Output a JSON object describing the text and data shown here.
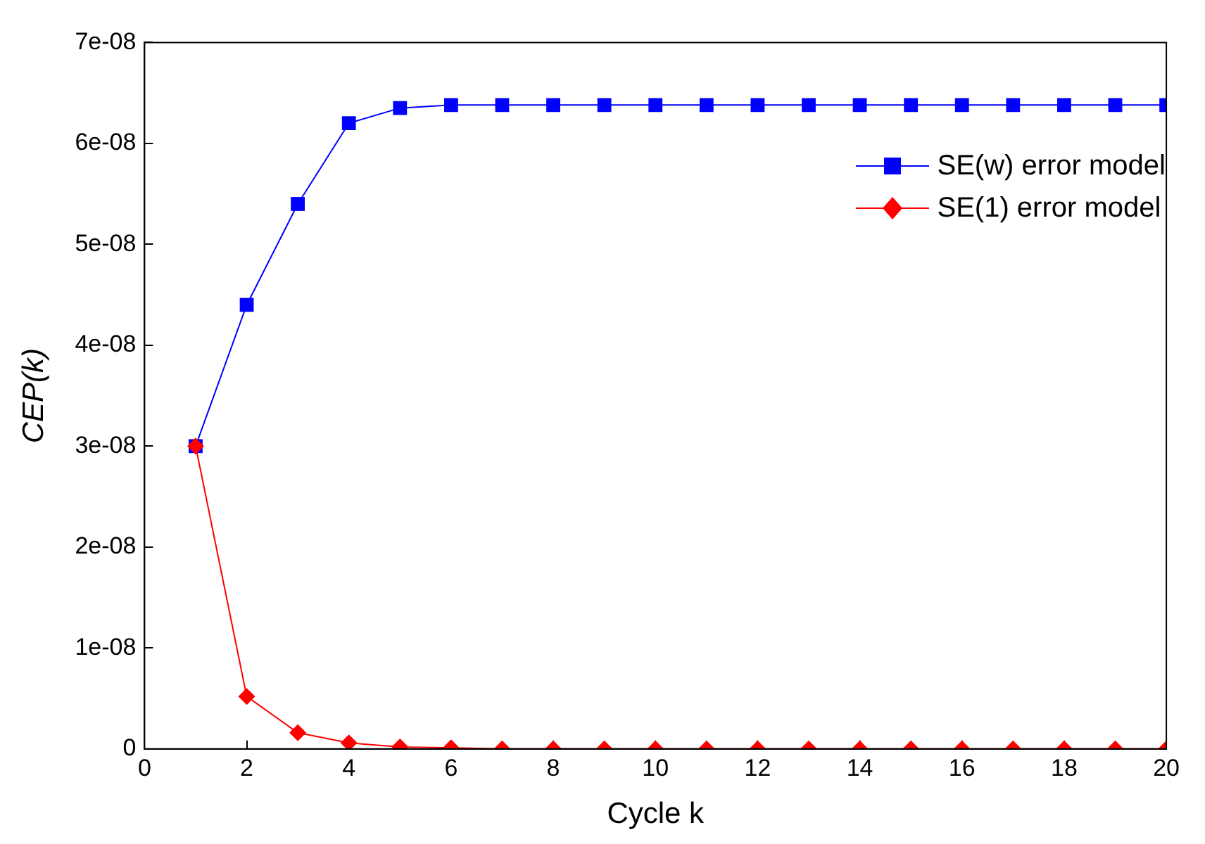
{
  "chart_data": {
    "type": "line",
    "xlabel": "Cycle k",
    "ylabel": "CEP(k)",
    "x": [
      1,
      2,
      3,
      4,
      5,
      6,
      7,
      8,
      9,
      10,
      11,
      12,
      13,
      14,
      15,
      16,
      17,
      18,
      19,
      20
    ],
    "series": [
      {
        "name": "SE(w) error model",
        "color": "#0000ff",
        "marker": "square",
        "values": [
          3e-08,
          4.4e-08,
          5.4e-08,
          6.2e-08,
          6.35e-08,
          6.38e-08,
          6.38e-08,
          6.38e-08,
          6.38e-08,
          6.38e-08,
          6.38e-08,
          6.38e-08,
          6.38e-08,
          6.38e-08,
          6.38e-08,
          6.38e-08,
          6.38e-08,
          6.38e-08,
          6.38e-08,
          6.38e-08
        ]
      },
      {
        "name": "SE(1) error model",
        "color": "#ff0000",
        "marker": "diamond",
        "values": [
          3e-08,
          5.2e-09,
          1.6e-09,
          6e-10,
          2e-10,
          1e-10,
          0,
          0,
          0,
          0,
          0,
          0,
          0,
          0,
          0,
          0,
          0,
          0,
          0,
          0
        ]
      }
    ],
    "xlim": [
      0,
      20
    ],
    "xticks": [
      0,
      2,
      4,
      6,
      8,
      10,
      12,
      14,
      16,
      18,
      20
    ],
    "ylim": [
      0,
      7e-08
    ],
    "yticks": [
      0,
      {
        "value": 1e-08,
        "label": "1e-08"
      },
      {
        "value": 2e-08,
        "label": "2e-08"
      },
      {
        "value": 3e-08,
        "label": "3e-08"
      },
      {
        "value": 4e-08,
        "label": "4e-08"
      },
      {
        "value": 5e-08,
        "label": "5e-08"
      },
      {
        "value": 6e-08,
        "label": "6e-08"
      },
      {
        "value": 7e-08,
        "label": "7e-08"
      }
    ],
    "grid": false,
    "legend": "top right",
    "line_style": "solid"
  }
}
